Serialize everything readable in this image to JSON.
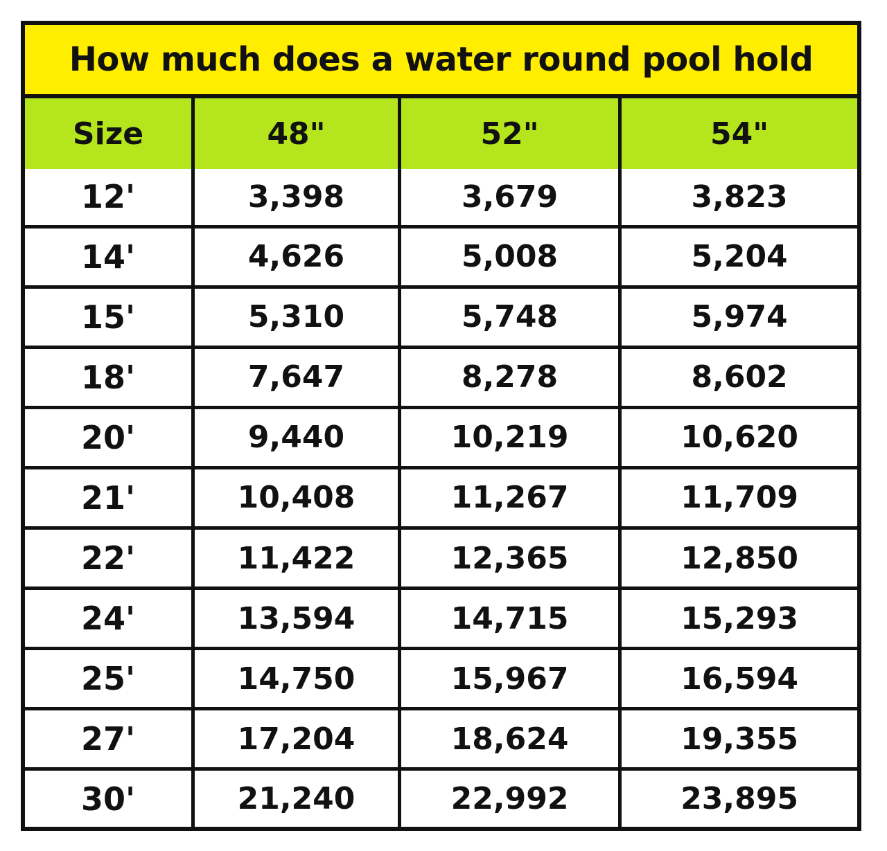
{
  "title": "How much does a water round pool hold",
  "colors": {
    "title_background": "#ffee00",
    "header_background": "#b5e61d",
    "border": "#111111",
    "text": "#111111"
  },
  "table": {
    "headers": [
      "Size",
      "48\"",
      "52\"",
      "54\""
    ],
    "rows": [
      [
        "12'",
        "3,398",
        "3,679",
        "3,823"
      ],
      [
        "14'",
        "4,626",
        "5,008",
        "5,204"
      ],
      [
        "15'",
        "5,310",
        "5,748",
        "5,974"
      ],
      [
        "18'",
        "7,647",
        "8,278",
        "8,602"
      ],
      [
        "20'",
        "9,440",
        "10,219",
        "10,620"
      ],
      [
        "21'",
        "10,408",
        "11,267",
        "11,709"
      ],
      [
        "22'",
        "11,422",
        "12,365",
        "12,850"
      ],
      [
        "24'",
        "13,594",
        "14,715",
        "15,293"
      ],
      [
        "25'",
        "14,750",
        "15,967",
        "16,594"
      ],
      [
        "27'",
        "17,204",
        "18,624",
        "19,355"
      ],
      [
        "30'",
        "21,240",
        "22,992",
        "23,895"
      ]
    ]
  }
}
